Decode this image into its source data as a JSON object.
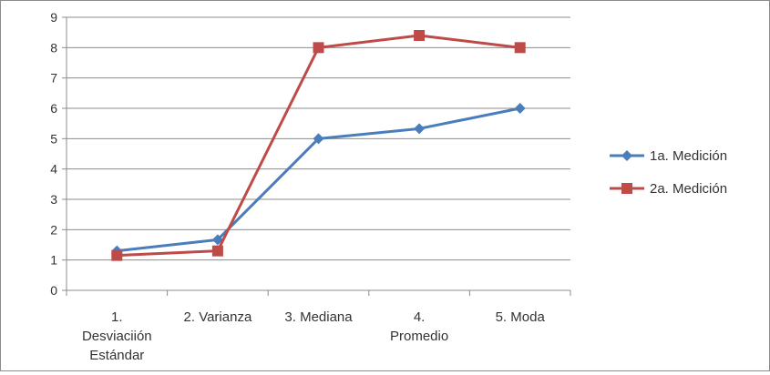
{
  "chart_data": {
    "type": "line",
    "title": "",
    "xlabel": "",
    "ylabel": "",
    "ylim": [
      0,
      9
    ],
    "yticks": [
      0,
      1,
      2,
      3,
      4,
      5,
      6,
      7,
      8,
      9
    ],
    "grid": true,
    "legend_position": "right",
    "categories": [
      [
        "1.",
        "Desviaciión",
        "Estándar"
      ],
      [
        "2. Varianza"
      ],
      [
        "3. Mediana"
      ],
      [
        "4.",
        "Promedio"
      ],
      [
        "5. Moda"
      ]
    ],
    "series": [
      {
        "name": "1a. Medición",
        "color": "#4a7ebb",
        "marker": "diamond",
        "values": [
          1.3,
          1.67,
          5.0,
          5.33,
          6.0
        ]
      },
      {
        "name": "2a. Medición",
        "color": "#be4b48",
        "marker": "square",
        "values": [
          1.15,
          1.3,
          8.0,
          8.4,
          8.0
        ]
      }
    ]
  }
}
